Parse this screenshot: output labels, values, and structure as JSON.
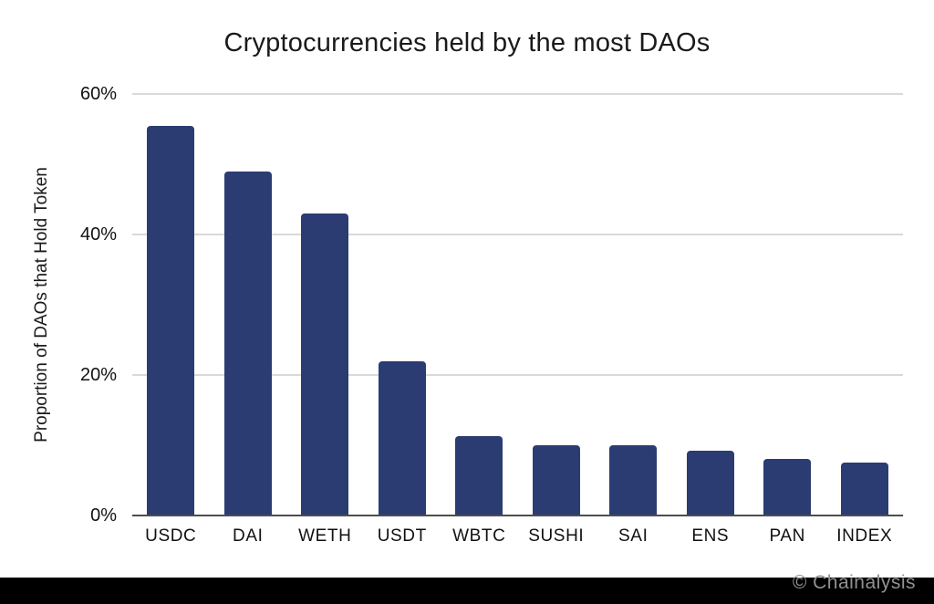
{
  "chart_data": {
    "type": "bar",
    "title": "Cryptocurrencies held by the most DAOs",
    "xlabel": "",
    "ylabel": "Proportion of DAOs that Hold Token",
    "categories": [
      "USDC",
      "DAI",
      "WETH",
      "USDT",
      "WBTC",
      "SUSHI",
      "SAI",
      "ENS",
      "PAN",
      "INDEX"
    ],
    "values": [
      55.5,
      49,
      43,
      22,
      11.3,
      10,
      10,
      9.2,
      8.1,
      7.5
    ],
    "ylim": [
      0,
      60
    ],
    "yticks": [
      0,
      20,
      40,
      60
    ],
    "ytick_labels": [
      "0%",
      "20%",
      "40%",
      "60%"
    ],
    "grid": true,
    "legend": false,
    "bar_color": "#2b3c72",
    "gridline_color": "#d9d9d9",
    "axis_color": "#4d4d4d"
  },
  "footer": {
    "watermark": "© Chainalysis",
    "bar_color": "#000000"
  }
}
